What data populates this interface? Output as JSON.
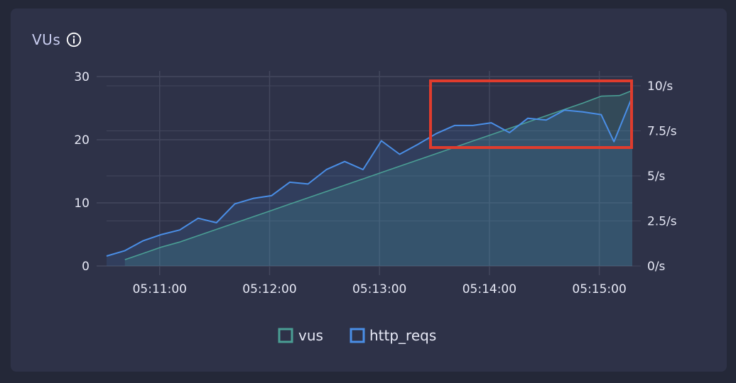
{
  "panel": {
    "title": "VUs"
  },
  "colors": {
    "vus": "#4a9e94",
    "http_reqs": "#4a8ee6",
    "highlight": "#e03c2d",
    "grid": "#43475d"
  },
  "icons": {
    "title_info": "info-icon"
  },
  "chart_data": {
    "type": "line",
    "x_ticks": [
      "05:11:00",
      "05:12:00",
      "05:13:00",
      "05:14:00",
      "05:15:00"
    ],
    "x_range": [
      "05:10:31",
      "05:15:18"
    ],
    "y_left": {
      "ticks": [
        0,
        10,
        20,
        30
      ],
      "ylim": [
        0,
        30
      ]
    },
    "y_right": {
      "ticks": [
        "0/s",
        "2.5/s",
        "5/s",
        "7.5/s",
        "10/s"
      ],
      "ylim": [
        0,
        10
      ]
    },
    "grid": true,
    "legend": {
      "placement": "bottom-center",
      "entries": [
        "vus",
        "http_reqs"
      ]
    },
    "series": [
      {
        "name": "vus",
        "axis": "left",
        "x": [
          "05:10:41",
          "05:10:51",
          "05:11:01",
          "05:11:11",
          "05:11:21",
          "05:11:31",
          "05:11:41",
          "05:11:51",
          "05:12:01",
          "05:12:11",
          "05:12:21",
          "05:12:31",
          "05:12:41",
          "05:12:51",
          "05:13:01",
          "05:13:11",
          "05:13:21",
          "05:13:31",
          "05:13:41",
          "05:13:51",
          "05:14:01",
          "05:14:11",
          "05:14:21",
          "05:14:31",
          "05:14:41",
          "05:14:51",
          "05:15:01",
          "05:15:11",
          "05:15:18"
        ],
        "values": [
          1,
          2,
          3,
          3.8,
          4.8,
          5.8,
          6.8,
          7.8,
          8.8,
          9.8,
          10.8,
          11.8,
          12.8,
          13.8,
          14.8,
          15.8,
          16.8,
          17.8,
          18.8,
          19.8,
          20.8,
          21.8,
          22.8,
          23.8,
          24.8,
          25.8,
          26.9,
          27.0,
          27.8
        ]
      },
      {
        "name": "http_reqs",
        "axis": "right",
        "x": [
          "05:10:31",
          "05:10:41",
          "05:10:51",
          "05:11:01",
          "05:11:11",
          "05:11:21",
          "05:11:31",
          "05:11:41",
          "05:11:51",
          "05:12:01",
          "05:12:11",
          "05:12:21",
          "05:12:31",
          "05:12:41",
          "05:12:51",
          "05:13:01",
          "05:13:11",
          "05:13:21",
          "05:13:31",
          "05:13:41",
          "05:13:51",
          "05:14:01",
          "05:14:11",
          "05:14:21",
          "05:14:31",
          "05:14:41",
          "05:14:51",
          "05:15:01",
          "05:15:08",
          "05:15:18"
        ],
        "values": [
          0.55,
          0.85,
          1.4,
          1.75,
          2.0,
          2.65,
          2.4,
          3.45,
          3.75,
          3.9,
          4.65,
          4.55,
          5.35,
          5.8,
          5.35,
          6.95,
          6.2,
          6.75,
          7.35,
          7.8,
          7.8,
          7.95,
          7.4,
          8.2,
          8.1,
          8.65,
          8.55,
          8.4,
          6.9,
          9.4
        ]
      }
    ]
  }
}
